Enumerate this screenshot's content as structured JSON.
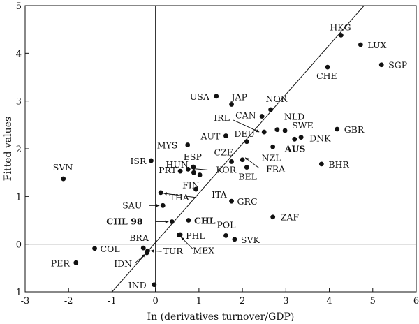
{
  "chart_data": {
    "type": "scatter",
    "title": "",
    "xlabel": "In (derivatives turnover/GDP)",
    "ylabel": "Fitted values",
    "xlim": [
      -3,
      6
    ],
    "ylim": [
      -1,
      5
    ],
    "xticks": [
      "-3",
      "-2",
      "-1",
      "0",
      "1",
      "2",
      "3",
      "4",
      "5",
      "6"
    ],
    "yticks": [
      "-1",
      "0",
      "1",
      "2",
      "3",
      "4",
      "5"
    ],
    "grid": false,
    "reference_lines": [
      {
        "axis": "x",
        "value": 0
      },
      {
        "axis": "y",
        "value": 0
      }
    ],
    "fit_line": {
      "x": [
        -1,
        4.8
      ],
      "y": [
        -1,
        5
      ]
    },
    "points": [
      {
        "label": "HKG",
        "x": 4.27,
        "y": 4.38
      },
      {
        "label": "LUX",
        "x": 4.72,
        "y": 4.18
      },
      {
        "label": "SGP",
        "x": 5.2,
        "y": 3.76
      },
      {
        "label": "CHE",
        "x": 3.96,
        "y": 3.71
      },
      {
        "label": "USA",
        "x": 1.4,
        "y": 3.1
      },
      {
        "label": "JAP",
        "x": 1.75,
        "y": 2.93
      },
      {
        "label": "NOR",
        "x": 2.65,
        "y": 2.82
      },
      {
        "label": "CAN",
        "x": 2.45,
        "y": 2.68
      },
      {
        "label": "IRL",
        "x": 2.5,
        "y": 2.35
      },
      {
        "label": "NLD",
        "x": 2.8,
        "y": 2.4
      },
      {
        "label": "SWE",
        "x": 2.98,
        "y": 2.38
      },
      {
        "label": "DNK",
        "x": 3.35,
        "y": 2.24
      },
      {
        "label": "GBR",
        "x": 4.18,
        "y": 2.41
      },
      {
        "label": "AUS",
        "x": 3.2,
        "y": 2.2
      },
      {
        "label": "AUT",
        "x": 1.62,
        "y": 2.27
      },
      {
        "label": "DEU",
        "x": 2.1,
        "y": 2.15
      },
      {
        "label": "MYS",
        "x": 0.74,
        "y": 2.08
      },
      {
        "label": "NZL",
        "x": 2.7,
        "y": 2.04
      },
      {
        "label": "CZE",
        "x": 1.75,
        "y": 1.73
      },
      {
        "label": "FRA",
        "x": 2.0,
        "y": 1.77
      },
      {
        "label": "BEL",
        "x": 2.1,
        "y": 1.61
      },
      {
        "label": "BHR",
        "x": 3.82,
        "y": 1.68
      },
      {
        "label": "ISR",
        "x": -0.1,
        "y": 1.75
      },
      {
        "label": "ESP",
        "x": 0.87,
        "y": 1.62
      },
      {
        "label": "PRT",
        "x": 0.57,
        "y": 1.53
      },
      {
        "label": "KOR",
        "x": 0.75,
        "y": 1.57
      },
      {
        "label": "FIN",
        "x": 1.02,
        "y": 1.45
      },
      {
        "label": "HUN",
        "x": 0.88,
        "y": 1.5
      },
      {
        "label": "THA",
        "x": 0.93,
        "y": 1.15
      },
      {
        "label": "SVN",
        "x": -2.12,
        "y": 1.37
      },
      {
        "label": "ITA",
        "x": 0.12,
        "y": 1.08
      },
      {
        "label": "GRC",
        "x": 1.75,
        "y": 0.9
      },
      {
        "label": "SAU",
        "x": 0.17,
        "y": 0.81
      },
      {
        "label": "ZAF",
        "x": 2.7,
        "y": 0.57
      },
      {
        "label": "CHL 98",
        "x": 0.38,
        "y": 0.47
      },
      {
        "label": "CHL",
        "x": 0.76,
        "y": 0.5
      },
      {
        "label": "POL",
        "x": 1.62,
        "y": 0.18
      },
      {
        "label": "PHL",
        "x": 0.57,
        "y": 0.2
      },
      {
        "label": "MEX",
        "x": 0.54,
        "y": 0.19
      },
      {
        "label": "SVK",
        "x": 1.82,
        "y": 0.1
      },
      {
        "label": "COL",
        "x": -1.4,
        "y": -0.09
      },
      {
        "label": "BRA",
        "x": -0.28,
        "y": -0.08
      },
      {
        "label": "TUR",
        "x": -0.18,
        "y": -0.14
      },
      {
        "label": "IDN",
        "x": -0.2,
        "y": -0.18
      },
      {
        "label": "PER",
        "x": -1.83,
        "y": -0.39
      },
      {
        "label": "IND",
        "x": -0.03,
        "y": -0.85
      }
    ]
  },
  "colors": {
    "ink": "#111111",
    "background": "#ffffff"
  }
}
